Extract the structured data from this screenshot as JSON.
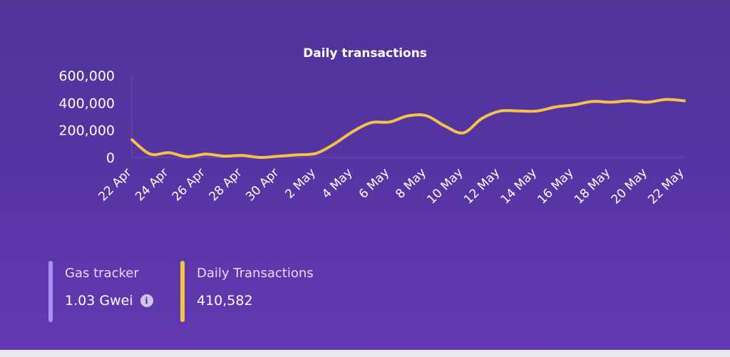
{
  "colors": {
    "line": "#f4c24a",
    "gas_bar": "#a991f0",
    "tx_bar": "#f4c24a",
    "axis": "#6a4cb5"
  },
  "chart_data": {
    "type": "line",
    "title": "Daily transactions",
    "xlabel": "",
    "ylabel": "",
    "ylim": [
      0,
      600000
    ],
    "yticks": [
      "600,000",
      "400,000",
      "200,000",
      "0"
    ],
    "ytick_values": [
      600000,
      400000,
      200000,
      0
    ],
    "x_tick_labels": [
      "22 Apr",
      "24 Apr",
      "26 Apr",
      "28 Apr",
      "30 Apr",
      "2 May",
      "4 May",
      "6 May",
      "8 May",
      "10 May",
      "12 May",
      "14 May",
      "16 May",
      "18 May",
      "20 May",
      "22 May"
    ],
    "grid": false,
    "legend": false,
    "x": [
      "22 Apr",
      "23 Apr",
      "24 Apr",
      "25 Apr",
      "26 Apr",
      "27 Apr",
      "28 Apr",
      "29 Apr",
      "30 Apr",
      "1 May",
      "2 May",
      "3 May",
      "4 May",
      "5 May",
      "6 May",
      "7 May",
      "8 May",
      "9 May",
      "10 May",
      "11 May",
      "12 May",
      "13 May",
      "14 May",
      "15 May",
      "16 May",
      "17 May",
      "18 May",
      "19 May",
      "20 May",
      "21 May",
      "22 May"
    ],
    "series": [
      {
        "values": [
          130000,
          25000,
          35000,
          5000,
          25000,
          10000,
          15000,
          0,
          10000,
          20000,
          30000,
          100000,
          190000,
          255000,
          260000,
          305000,
          305000,
          230000,
          180000,
          285000,
          340000,
          340000,
          340000,
          370000,
          385000,
          410000,
          405000,
          415000,
          405000,
          425000,
          415000
        ]
      }
    ]
  },
  "stats": {
    "gas": {
      "label": "Gas tracker",
      "value": "1.03 Gwei",
      "icon": "info-icon"
    },
    "transactions": {
      "label": "Daily Transactions",
      "value": "410,582"
    }
  }
}
